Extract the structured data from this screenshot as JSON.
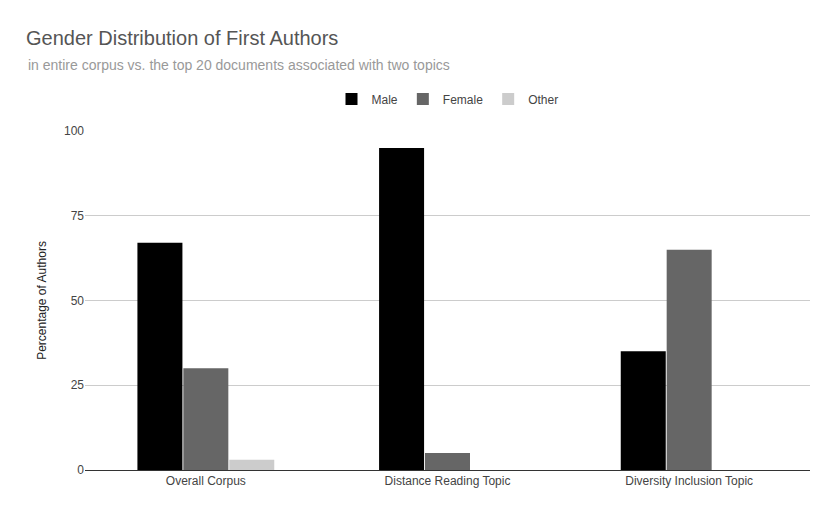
{
  "chart_data": {
    "type": "bar",
    "title": "Gender Distribution of First Authors",
    "subtitle": "in entire corpus vs. the top 20 documents associated with two topics",
    "y_label": "Percentage of Authors",
    "categories": [
      "Overall Corpus",
      "Distance Reading Topic",
      "Diversity Inclusion Topic"
    ],
    "series": [
      {
        "name": "Male",
        "color": "#000000",
        "values": [
          67,
          95,
          35
        ]
      },
      {
        "name": "Female",
        "color": "#666666",
        "values": [
          30,
          5,
          65
        ]
      },
      {
        "name": "Other",
        "color": "#cccccc",
        "values": [
          3,
          0,
          0
        ]
      }
    ],
    "ylim": [
      0,
      100
    ],
    "yticks": [
      0,
      25,
      50,
      75,
      100
    ],
    "grid": true,
    "legend": "top"
  }
}
